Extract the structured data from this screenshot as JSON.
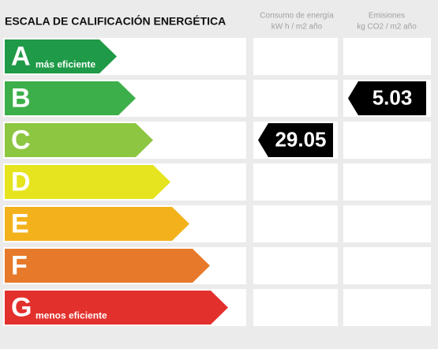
{
  "header": {
    "title": "ESCALA DE CALIFICACIÓN ENERGÉTICA",
    "columns": [
      {
        "title": "Consumo de energía",
        "unit": "kW h / m2 año"
      },
      {
        "title": "Emisiones",
        "unit": "kg CO2 / m2 año"
      }
    ]
  },
  "rows": [
    {
      "letter": "A",
      "note": "más eficiente",
      "color": "#1f9a48"
    },
    {
      "letter": "B",
      "color": "#3daf4a",
      "emissions": "5.03"
    },
    {
      "letter": "C",
      "color": "#8dc641",
      "consumption": "29.05"
    },
    {
      "letter": "D",
      "color": "#e6e41e"
    },
    {
      "letter": "E",
      "color": "#f3b21c"
    },
    {
      "letter": "F",
      "color": "#e77a2a"
    },
    {
      "letter": "G",
      "note": "menos eficiente",
      "color": "#e2302c"
    }
  ]
}
